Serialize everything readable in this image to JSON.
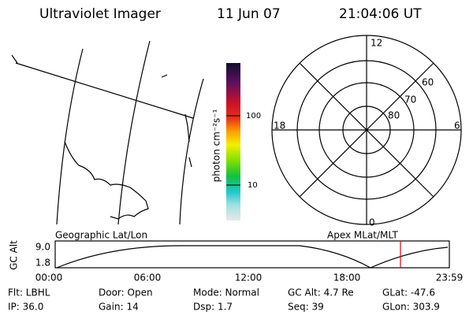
{
  "header": {
    "title": "Ultraviolet Imager",
    "date": "11 Jun 07",
    "time": "21:04:06 UT"
  },
  "colorbar": {
    "label": "photon cm⁻²s⁻¹",
    "ticks": [
      "100",
      "10"
    ]
  },
  "map": {
    "label": "Geographic Lat/Lon"
  },
  "polar": {
    "label": "Apex MLat/MLT",
    "mlt": {
      "top": "12",
      "left": "18",
      "right": "6",
      "bottom": "0"
    },
    "rings": [
      "60",
      "70",
      "80"
    ]
  },
  "orbit": {
    "ylabel": "GC Alt",
    "yticks": [
      "9.0",
      "1.8"
    ],
    "xticks": [
      "00:00",
      "06:00",
      "12:00",
      "18:00",
      "23:59"
    ]
  },
  "footer": {
    "rows": [
      [
        "Flt: LBHL",
        "Door: Open",
        "Mode: Normal",
        "GC Alt: 4.7 Re",
        "GLat: -47.6"
      ],
      [
        "IP: 36.0",
        "Gain: 14",
        "Dsp: 1.7",
        "Seq: 39",
        "GLon: 303.9"
      ]
    ]
  }
}
